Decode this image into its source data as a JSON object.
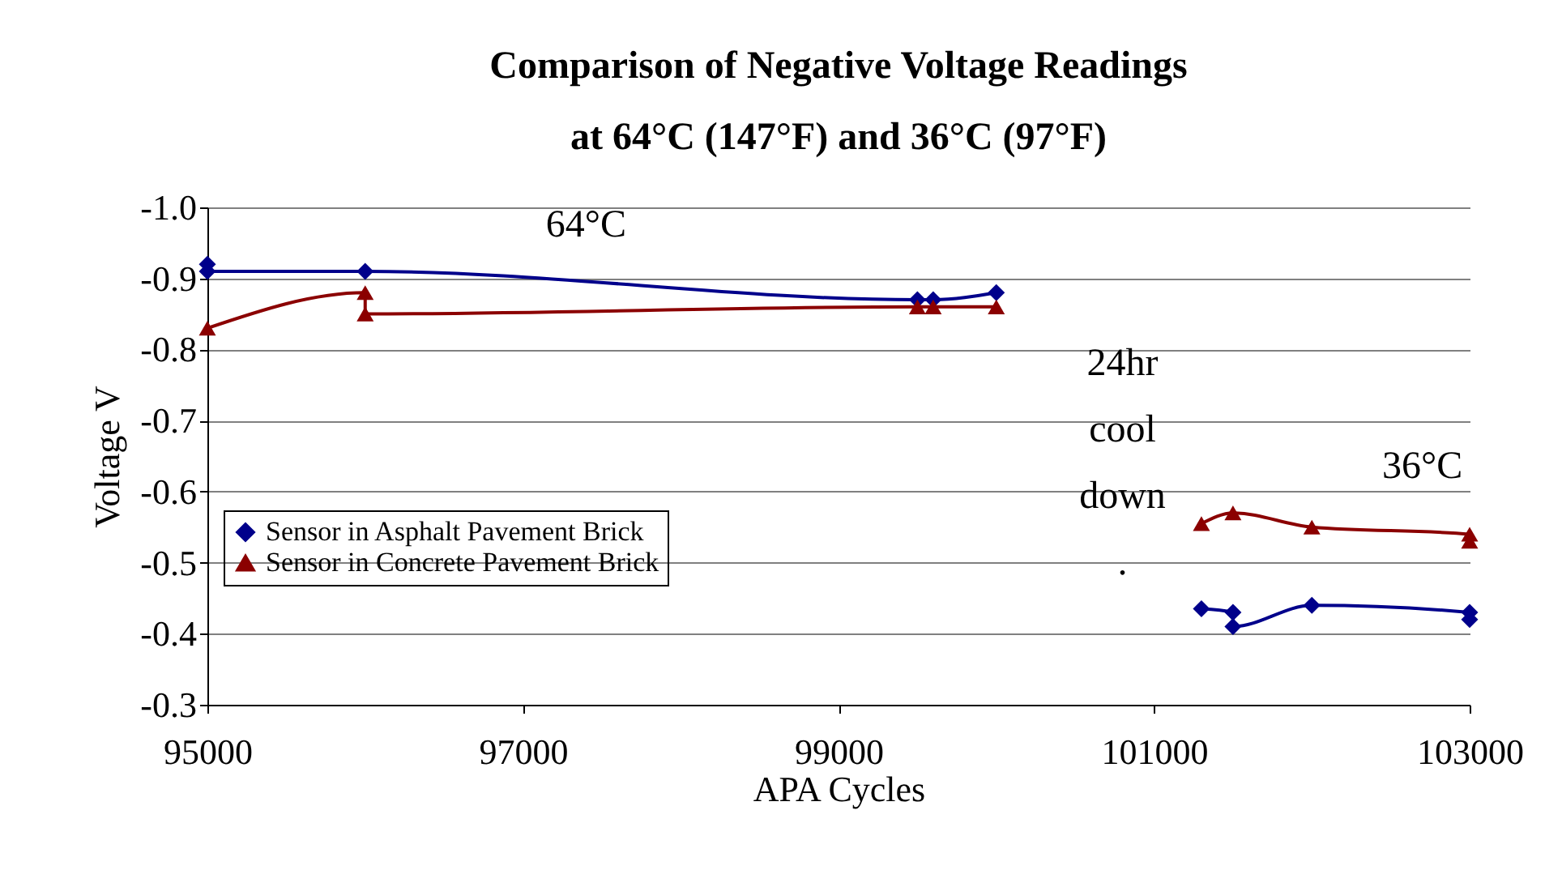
{
  "chart_data": {
    "type": "line",
    "title": "Comparison of Negative Voltage Readings\nat 64°C (147°F) and 36°C (97°F)",
    "xlabel": "APA Cycles",
    "ylabel": "Voltage V",
    "xlim": [
      95000,
      103000
    ],
    "xticks": [
      95000,
      97000,
      99000,
      101000,
      103000
    ],
    "ylim": [
      -0.3,
      -1.0
    ],
    "yticks": [
      {
        "value": -1.0,
        "label": "-1.0"
      },
      {
        "value": -0.9,
        "label": "-0.9"
      },
      {
        "value": -0.8,
        "label": "-0.8"
      },
      {
        "value": -0.7,
        "label": "-0.7"
      },
      {
        "value": -0.6,
        "label": "-0.6"
      },
      {
        "value": -0.5,
        "label": "-0.5"
      },
      {
        "value": -0.4,
        "label": "-0.4"
      },
      {
        "value": -0.3,
        "label": "-0.3"
      }
    ],
    "grid": "y",
    "legend": "bottom left",
    "annotations": [
      "64°C",
      "24hr\ncool\ndown\n.",
      "36°C"
    ],
    "series": [
      {
        "name": "Sensor in Asphalt Pavement Brick",
        "color": "#00008b",
        "marker": "diamond",
        "x": [
          95000,
          95000,
          96000,
          99500,
          99600,
          100000,
          100500,
          101300,
          101500,
          101500,
          102000,
          103000,
          103000
        ],
        "values": [
          -0.92,
          -0.91,
          -0.91,
          -0.87,
          -0.87,
          -0.88,
          null,
          -0.435,
          -0.43,
          -0.41,
          -0.44,
          -0.43,
          -0.42
        ]
      },
      {
        "name": "Sensor in Concrete Pavement Brick",
        "color": "#8b0000",
        "marker": "triangle",
        "x": [
          95000,
          96000,
          96000,
          99500,
          99600,
          100000,
          100500,
          101300,
          101500,
          102000,
          103000,
          103000
        ],
        "values": [
          -0.83,
          -0.88,
          -0.85,
          -0.86,
          -0.86,
          -0.86,
          null,
          -0.555,
          -0.57,
          -0.55,
          -0.54,
          -0.53
        ]
      }
    ]
  }
}
